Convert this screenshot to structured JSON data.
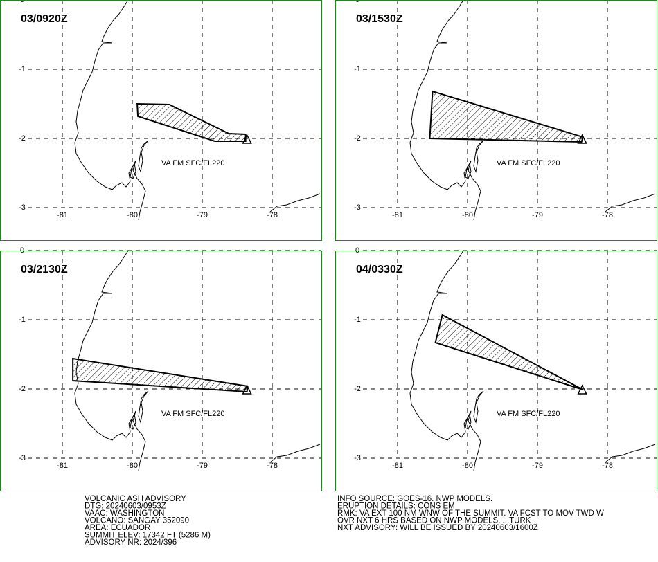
{
  "panels": [
    {
      "time": "03/0920Z",
      "label": "VA FM SFC/FL220",
      "polygon": [
        [
          -79.93,
          -1.5
        ],
        [
          -79.47,
          -1.51
        ],
        [
          -78.62,
          -1.93
        ],
        [
          -78.38,
          -1.94
        ],
        [
          -78.38,
          -2.04
        ],
        [
          -78.82,
          -2.04
        ],
        [
          -79.92,
          -1.68
        ]
      ],
      "volcano": [
        -78.36,
        -2.02
      ]
    },
    {
      "time": "03/1530Z",
      "label": "VA FM SFC/FL220",
      "polygon": [
        [
          -80.5,
          -1.32
        ],
        [
          -78.35,
          -1.98
        ],
        [
          -78.37,
          -2.05
        ],
        [
          -80.54,
          -2.0
        ]
      ],
      "volcano": [
        -78.36,
        -2.02
      ]
    },
    {
      "time": "03/2130Z",
      "label": "VA FM SFC/FL220",
      "polygon": [
        [
          -80.85,
          -1.56
        ],
        [
          -78.35,
          -1.96
        ],
        [
          -78.36,
          -2.04
        ],
        [
          -80.85,
          -1.88
        ]
      ],
      "volcano": [
        -78.36,
        -2.02
      ]
    },
    {
      "time": "04/0330Z",
      "label": "VA FM SFC/FL220",
      "polygon": [
        [
          -80.36,
          -0.93
        ],
        [
          -78.35,
          -2.01
        ],
        [
          -80.46,
          -1.33
        ]
      ],
      "volcano": [
        -78.36,
        -2.02
      ]
    }
  ],
  "lon_ticks": [
    -81,
    -80,
    -79,
    -78
  ],
  "lat_ticks": [
    0,
    -1,
    -2,
    -3
  ],
  "footer_left": [
    "VOLCANIC ASH ADVISORY",
    "DTG: 20240603/0953Z",
    "VAAC: WASHINGTON",
    "VOLCANO: SANGAY 352090",
    "AREA: ECUADOR",
    "SUMMIT ELEV: 17342 FT (5286 M)",
    "ADVISORY NR: 2024/396"
  ],
  "footer_right": [
    "INFO SOURCE: GOES-16. NWP MODELS.",
    "ERUPTION DETAILS: CONS EM",
    "RMK: VA EXT 100 NM WNW OF THE SUMMIT. VA FCST TO MOV TWD W",
    "OVR NXT 6 HRS BASED ON NWP MODELS. ...TURK",
    "NXT ADVISORY: WILL BE ISSUED BY 20240603/1600Z"
  ]
}
